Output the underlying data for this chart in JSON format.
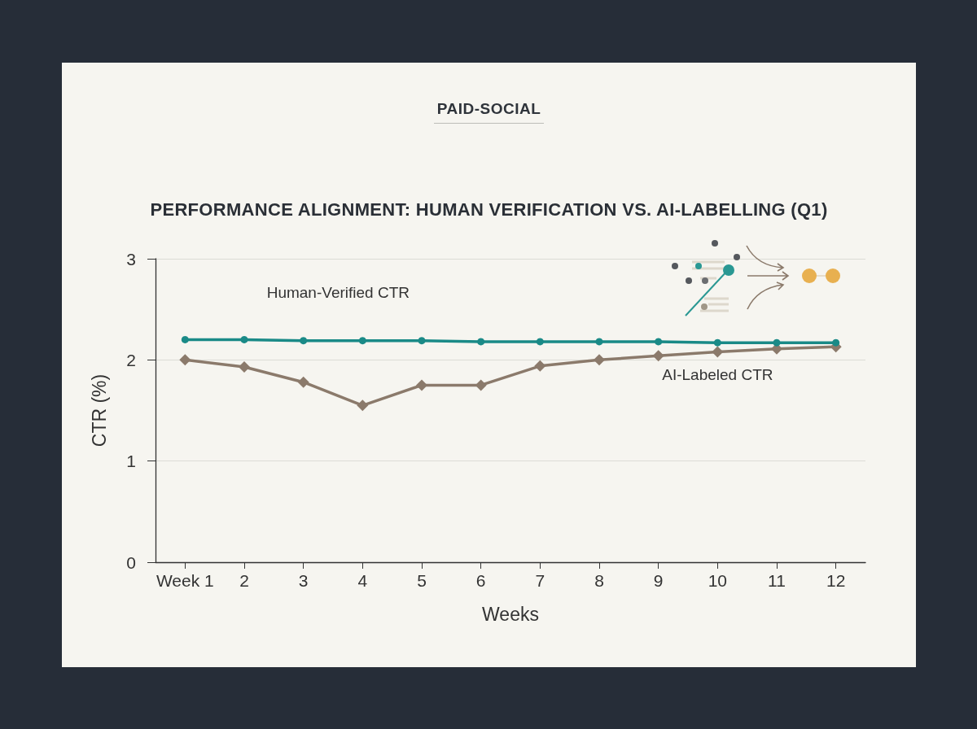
{
  "chart_data": {
    "type": "line",
    "subtitle": "PAID-SOCIAL",
    "title": "PERFORMANCE ALIGNMENT: HUMAN VERIFICATION VS. AI-LABELLING (Q1)",
    "xlabel": "Weeks",
    "ylabel": "CTR (%)",
    "categories": [
      "Week 1",
      "2",
      "3",
      "4",
      "5",
      "6",
      "7",
      "8",
      "9",
      "10",
      "11",
      "12"
    ],
    "series": [
      {
        "name": "Human-Verified CTR",
        "color": "#1a8a87",
        "marker": "circle",
        "values": [
          2.2,
          2.2,
          2.19,
          2.19,
          2.19,
          2.18,
          2.18,
          2.18,
          2.18,
          2.17,
          2.17,
          2.17
        ]
      },
      {
        "name": "AI-Labeled CTR",
        "color": "#8b7a6b",
        "marker": "diamond",
        "values": [
          2.0,
          1.93,
          1.78,
          1.55,
          1.75,
          1.75,
          1.94,
          2.0,
          2.04,
          2.08,
          2.11,
          2.13
        ]
      }
    ],
    "ylim": [
      0,
      3
    ],
    "yticks": [
      0,
      1,
      2,
      3
    ],
    "grid": "y",
    "legend": false,
    "line_style": "solid"
  }
}
